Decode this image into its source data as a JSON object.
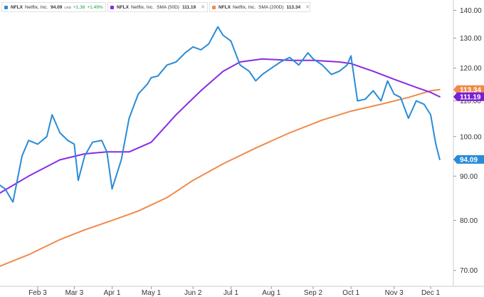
{
  "legends": [
    {
      "symbol": "NFLX",
      "name": "Netflix, Inc.",
      "value": "94.09",
      "unit": "USD",
      "change": "+1.38",
      "change_pct": "+1.49%",
      "color": "#2a8bd6"
    },
    {
      "symbol": "NFLX",
      "name": "Netflix, Inc.",
      "indicator": "SMA (50D)",
      "value": "111.19",
      "color": "#8a2be2"
    },
    {
      "symbol": "NFLX",
      "name": "Netflix, Inc.",
      "indicator": "SMA (200D)",
      "value": "113.34",
      "color": "#f08a4b"
    }
  ],
  "close_icon": "close-icon",
  "chart_data": {
    "type": "line",
    "x_ticks": [
      "Feb 3",
      "Mar 3",
      "Apr 1",
      "May 1",
      "Jun 2",
      "Jul 1",
      "Aug 1",
      "Sep 2",
      "Oct 1",
      "Nov 3",
      "Dec 1"
    ],
    "y_ticks": [
      70,
      80,
      90,
      100,
      110,
      120,
      130,
      140
    ],
    "y_tick_labels": [
      "70.00",
      "80.00",
      "90.00",
      "100.00",
      "110.00",
      "120.00",
      "130.00",
      "140.00"
    ],
    "ylim": [
      68,
      142
    ],
    "y_scale": "log",
    "value_badges": [
      {
        "label": "113.34",
        "value": 113.34,
        "color": "#f08a4b"
      },
      {
        "label": "111.19",
        "value": 111.19,
        "color": "#7a1fd6"
      },
      {
        "label": "94.09",
        "value": 94.09,
        "color": "#2a8bd6"
      }
    ],
    "series": [
      {
        "name": "NFLX",
        "color": "#2a8bd6",
        "x": [
          "Jan 2",
          "Jan 9",
          "Jan 15",
          "Jan 22",
          "Jan 27",
          "Feb 3",
          "Feb 10",
          "Feb 14",
          "Feb 20",
          "Feb 26",
          "Mar 3",
          "Mar 6",
          "Mar 11",
          "Mar 17",
          "Mar 24",
          "Mar 28",
          "Apr 1",
          "Apr 8",
          "Apr 14",
          "Apr 21",
          "Apr 28",
          "May 1",
          "May 6",
          "May 13",
          "May 20",
          "May 27",
          "Jun 2",
          "Jun 8",
          "Jun 14",
          "Jun 21",
          "Jun 25",
          "Jul 1",
          "Jul 8",
          "Jul 15",
          "Jul 20",
          "Jul 25",
          "Aug 1",
          "Aug 8",
          "Aug 15",
          "Aug 22",
          "Aug 29",
          "Sep 2",
          "Sep 9",
          "Sep 16",
          "Sep 22",
          "Sep 28",
          "Oct 1",
          "Oct 6",
          "Oct 12",
          "Oct 18",
          "Oct 24",
          "Oct 29",
          "Nov 3",
          "Nov 8",
          "Nov 14",
          "Nov 20",
          "Nov 26",
          "Dec 1",
          "Dec 5",
          "Dec 8"
        ],
        "values": [
          88.5,
          87.0,
          84.0,
          95.0,
          99.0,
          98.0,
          100.0,
          106.0,
          101.0,
          99.0,
          98.0,
          89.0,
          95.0,
          98.5,
          99.0,
          96.0,
          87.0,
          94.0,
          105.0,
          112.0,
          115.0,
          117.0,
          117.5,
          121.0,
          122.0,
          125.0,
          127.0,
          126.0,
          128.0,
          134.0,
          131.0,
          129.0,
          121.0,
          119.0,
          116.0,
          118.0,
          120.0,
          122.0,
          123.5,
          121.0,
          125.0,
          123.0,
          121.0,
          118.0,
          119.0,
          121.0,
          124.0,
          110.0,
          110.5,
          113.0,
          110.0,
          116.0,
          112.0,
          111.0,
          105.0,
          110.0,
          109.0,
          106.0,
          98.0,
          94.09
        ]
      },
      {
        "name": "SMA (50D)",
        "color": "#8a2be2",
        "x": [
          "Jan 2",
          "Jan 27",
          "Feb 20",
          "Mar 11",
          "Mar 28",
          "Apr 14",
          "May 1",
          "May 20",
          "Jun 8",
          "Jun 25",
          "Jul 8",
          "Jul 25",
          "Aug 15",
          "Sep 2",
          "Sep 22",
          "Oct 1",
          "Oct 18",
          "Nov 3",
          "Nov 20",
          "Dec 1",
          "Dec 8"
        ],
        "values": [
          85.5,
          90.0,
          94.0,
          95.5,
          96.0,
          96.0,
          98.5,
          106.0,
          113.0,
          119.0,
          122.0,
          123.0,
          122.5,
          122.5,
          122.0,
          121.5,
          119.0,
          116.5,
          114.0,
          112.5,
          111.19
        ]
      },
      {
        "name": "SMA (200D)",
        "color": "#f08a4b",
        "x": [
          "Jan 2",
          "Jan 27",
          "Feb 20",
          "Mar 11",
          "Apr 1",
          "Apr 21",
          "May 13",
          "Jun 2",
          "Jun 25",
          "Jul 20",
          "Aug 15",
          "Sep 9",
          "Oct 1",
          "Oct 24",
          "Nov 14",
          "Dec 1",
          "Dec 8"
        ],
        "values": [
          70.5,
          73.0,
          76.0,
          78.0,
          80.0,
          82.0,
          85.0,
          89.0,
          93.0,
          97.0,
          101.0,
          104.5,
          107.0,
          109.0,
          111.0,
          113.0,
          113.34
        ]
      }
    ]
  }
}
